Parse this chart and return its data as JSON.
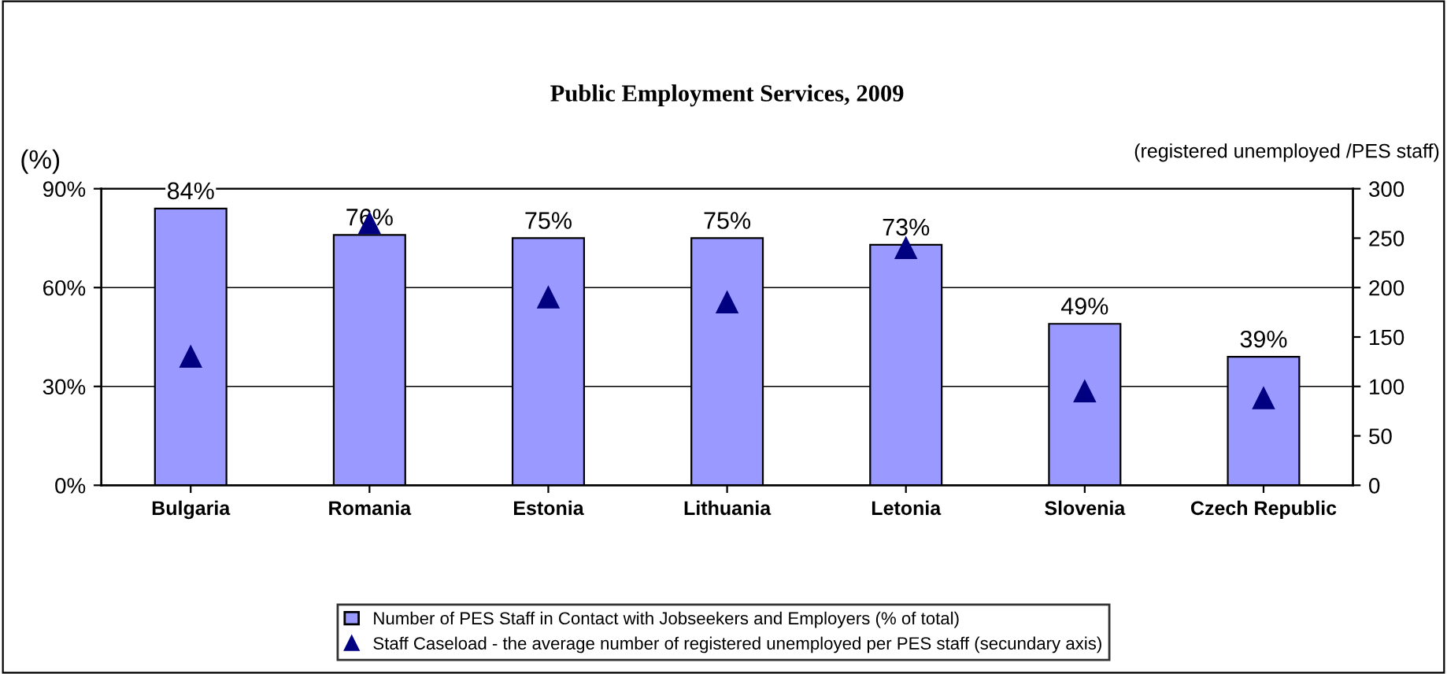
{
  "chart_data": {
    "type": "bar",
    "title": "Public Employment Services, 2009",
    "ylabel": "(%)",
    "y2label": "(registered unemployed /PES staff)",
    "categories": [
      "Bulgaria",
      "Romania",
      "Estonia",
      "Lithuania",
      "Letonia",
      "Slovenia",
      "Czech Republic"
    ],
    "series": [
      {
        "name": "Number of PES Staff in Contact with Jobseekers and Employers (% of total)",
        "color": "#9999ff",
        "values": [
          84,
          76,
          75,
          75,
          73,
          49,
          39
        ],
        "value_labels": [
          "84%",
          "76%",
          "75%",
          "75%",
          "73%",
          "49%",
          "39%"
        ]
      },
      {
        "name": "Staff Caseload - the average number of registered unemployed per PES staff (secundary axis)",
        "type": "scatter",
        "axis": "y2",
        "marker": "triangle",
        "color": "#000080",
        "values": [
          130,
          265,
          190,
          185,
          240,
          95,
          88
        ]
      }
    ],
    "ylim": [
      0,
      90
    ],
    "yticks": [
      {
        "value": 0,
        "label": "0%"
      },
      {
        "value": 30,
        "label": "30%"
      },
      {
        "value": 60,
        "label": "60%"
      },
      {
        "value": 90,
        "label": "90%"
      }
    ],
    "y2lim": [
      0,
      300
    ],
    "y2ticks": [
      0,
      50,
      100,
      150,
      200,
      250,
      300
    ],
    "grid": "y",
    "legend": "bottom"
  }
}
